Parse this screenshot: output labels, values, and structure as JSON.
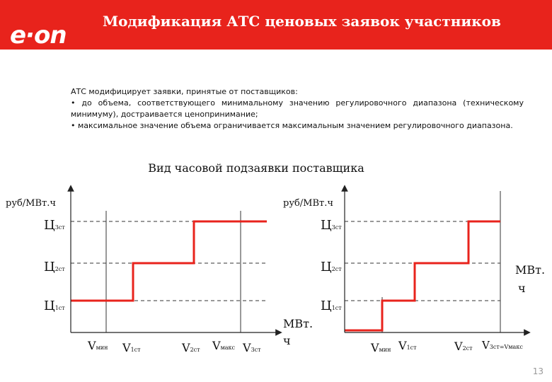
{
  "header": {
    "logo_text": "e·on",
    "title": "Модификация АТС ценовых заявок участников",
    "background_color": "#e8231c"
  },
  "description": {
    "intro": "АТС модифицирует заявки, принятые от поставщиков:",
    "bullet_1": "• до объема, соответствующего минимальному значению регулировочного диапазона (техническому минимуму), достраивается ценопринимание;",
    "bullet_2": "• максимальное значение объема ограничивается максимальным значением регулировочного диапазона."
  },
  "subtitle": "Вид часовой подзаявки поставщика",
  "left_chart": {
    "y_axis_label": "руб/МВт.ч",
    "x_axis_label_line1": "МВт.",
    "x_axis_label_line2": "ч",
    "price_levels": [
      {
        "base": "Ц",
        "sub": "3ст"
      },
      {
        "base": "Ц",
        "sub": "2ст"
      },
      {
        "base": "Ц",
        "sub": "1ст"
      }
    ],
    "volume_labels": [
      {
        "base": "V",
        "sub": "мин"
      },
      {
        "base": "V",
        "sub": "1ст"
      },
      {
        "base": "V",
        "sub": "2ст"
      },
      {
        "base": "V",
        "sub": "макс"
      },
      {
        "base": "V",
        "sub": "3ст"
      }
    ]
  },
  "right_chart": {
    "y_axis_label": "руб/МВт.ч",
    "x_axis_label_line1": "МВт.",
    "x_axis_label_line2": "ч",
    "price_levels": [
      {
        "base": "Ц",
        "sub": "3ст"
      },
      {
        "base": "Ц",
        "sub": "2ст"
      },
      {
        "base": "Ц",
        "sub": "1ст"
      }
    ],
    "volume_labels": [
      {
        "base": "V",
        "sub": "мин"
      },
      {
        "base": "V",
        "sub": "1ст"
      },
      {
        "base": "V",
        "sub": "2ст"
      },
      {
        "base": "V",
        "sub": "3ст=Vмакс"
      }
    ]
  },
  "colors": {
    "step_line": "#e8231c",
    "axes": "#222222",
    "dashed": "#333333"
  },
  "page_number": "13"
}
